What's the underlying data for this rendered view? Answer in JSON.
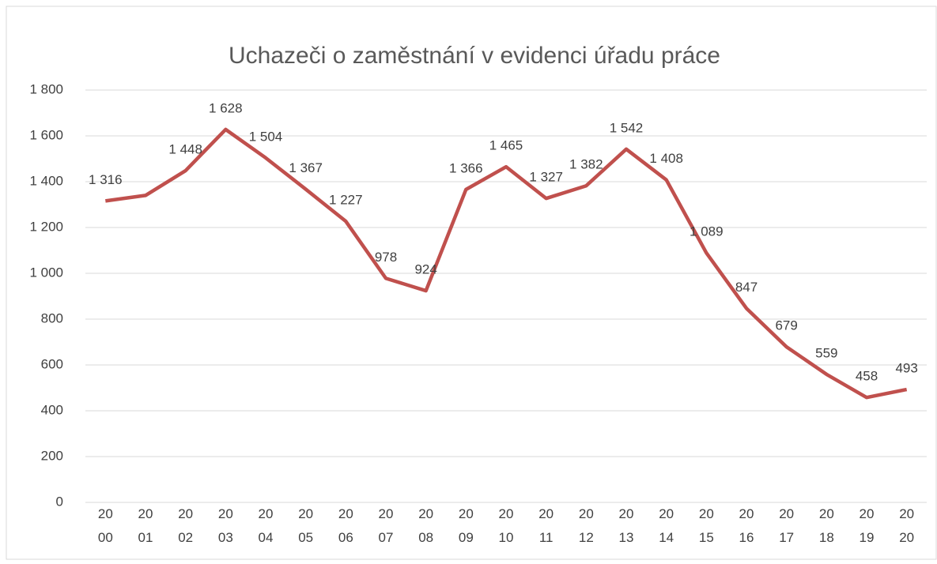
{
  "chart_data": {
    "type": "line",
    "title": "Uchazeči o zaměstnání v evidenci úřadu práce",
    "categories": [
      "2000",
      "2001",
      "2002",
      "2003",
      "2004",
      "2005",
      "2006",
      "2007",
      "2008",
      "2009",
      "2010",
      "2011",
      "2012",
      "2013",
      "2014",
      "2015",
      "2016",
      "2017",
      "2018",
      "2019",
      "2020"
    ],
    "series": [
      {
        "color": "#c0504d",
        "values": [
          1316,
          1340,
          1448,
          1628,
          1504,
          1367,
          1227,
          978,
          924,
          1366,
          1465,
          1327,
          1382,
          1542,
          1408,
          1089,
          847,
          679,
          559,
          458,
          493
        ],
        "value_labels": [
          "1 316",
          null,
          "1 448",
          "1 628",
          "1 504",
          "1 367",
          "1 227",
          "978",
          "924",
          "1 366",
          "1 465",
          "1 327",
          "1 382",
          "1 542",
          "1 408",
          "1 089",
          "847",
          "679",
          "559",
          "458",
          "493"
        ]
      }
    ],
    "ylim": [
      0,
      1800
    ],
    "yticks": [
      0,
      200,
      400,
      600,
      800,
      {
        "value": 1000,
        "label": "1 000"
      },
      {
        "value": 1200,
        "label": "1 200"
      },
      {
        "value": 1400,
        "label": "1 400"
      },
      {
        "value": 1600,
        "label": "1 600"
      },
      {
        "value": 1800,
        "label": "1 800"
      }
    ],
    "grid": true
  }
}
